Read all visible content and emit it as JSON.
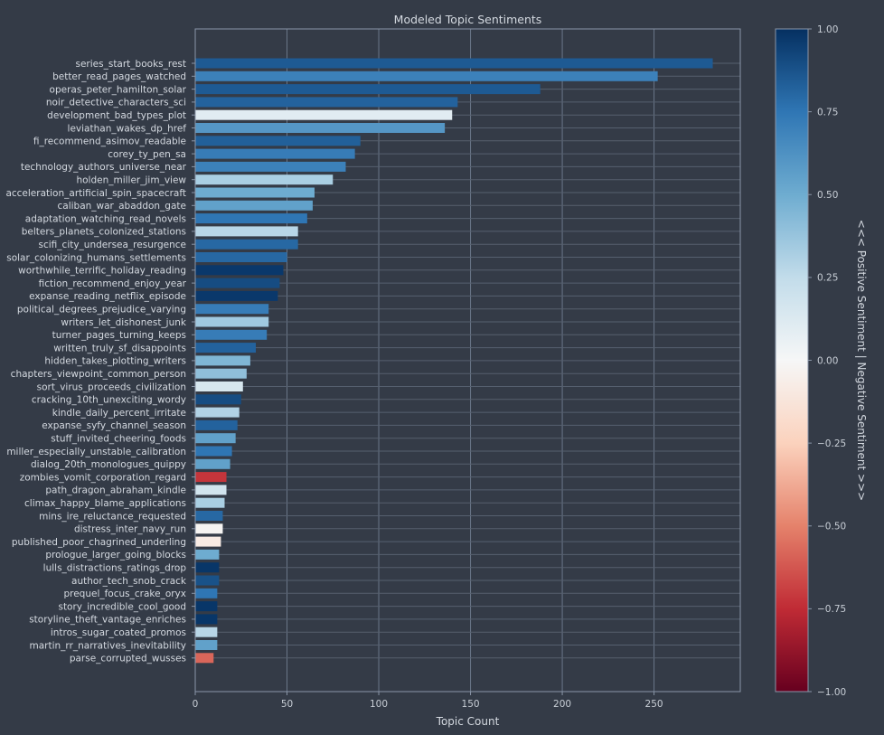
{
  "chart_data": {
    "type": "bar",
    "orientation": "horizontal",
    "title": "Modeled Topic Sentiments",
    "xlabel": "Topic Count",
    "ylabel": "",
    "xlim": [
      0,
      297
    ],
    "xticks": [
      0,
      50,
      100,
      150,
      200,
      250
    ],
    "grid": true,
    "colorbar": {
      "label": "<<< Positive Sentiment | Negative Sentiment >>>",
      "colormap": "RdBu",
      "range": [
        -1.0,
        1.0
      ],
      "ticks": [
        "1.00",
        "0.75",
        "0.50",
        "0.25",
        "0.00",
        "−0.25",
        "−0.50",
        "−0.75",
        "−1.00"
      ],
      "stops": {
        "minus_1_00": "#67001f",
        "minus_0_75": "#c02b35",
        "minus_0_50": "#e5826b",
        "minus_0_25": "#fbd2bd",
        "zero": "#f6f7f7",
        "plus_0_25": "#c2dcea",
        "plus_0_50": "#6eacd0",
        "plus_0_75": "#2f76b4",
        "plus_1_00": "#053061"
      }
    },
    "categories": [
      "series_start_books_rest",
      "better_read_pages_watched",
      "operas_peter_hamilton_solar",
      "noir_detective_characters_sci",
      "development_bad_types_plot",
      "leviathan_wakes_dp_href",
      "fi_recommend_asimov_readable",
      "corey_ty_pen_sa",
      "technology_authors_universe_near",
      "holden_miller_jim_view",
      "acceleration_artificial_spin_spacecraft",
      "caliban_war_abaddon_gate",
      "adaptation_watching_read_novels",
      "belters_planets_colonized_stations",
      "scifi_city_undersea_resurgence",
      "solar_colonizing_humans_settlements",
      "worthwhile_terrific_holiday_reading",
      "fiction_recommend_enjoy_year",
      "expanse_reading_netflix_episode",
      "political_degrees_prejudice_varying",
      "writers_let_dishonest_junk",
      "turner_pages_turning_keeps",
      "written_truly_sf_disappoints",
      "hidden_takes_plotting_writers",
      "chapters_viewpoint_common_person",
      "sort_virus_proceeds_civilization",
      "cracking_10th_unexciting_wordy",
      "kindle_daily_percent_irritate",
      "expanse_syfy_channel_season",
      "stuff_invited_cheering_foods",
      "miller_especially_unstable_calibration",
      "dialog_20th_monologues_quippy",
      "zombies_vomit_corporation_regard",
      "path_dragon_abraham_kindle",
      "climax_happy_blame_applications",
      "mins_ire_reluctance_requested",
      "distress_inter_navy_run",
      "published_poor_chagrined_underling",
      "prologue_larger_going_blocks",
      "lulls_distractions_ratings_drop",
      "author_tech_snob_crack",
      "prequel_focus_crake_oryx",
      "story_incredible_cool_good",
      "storyline_theft_vantage_enriches",
      "intros_sugar_coated_promos",
      "martin_rr_narratives_inevitability",
      "parse_corrupted_wusses"
    ],
    "values": [
      282,
      252,
      188,
      143,
      140,
      136,
      90,
      87,
      82,
      75,
      65,
      64,
      61,
      56,
      56,
      50,
      48,
      46,
      45,
      40,
      40,
      39,
      33,
      30,
      28,
      26,
      25,
      24,
      23,
      22,
      20,
      19,
      17,
      17,
      16,
      15,
      15,
      14,
      13,
      13,
      13,
      12,
      12,
      12,
      12,
      12,
      10
    ],
    "sentiment": [
      0.85,
      0.7,
      0.85,
      0.82,
      0.1,
      0.6,
      0.83,
      0.72,
      0.7,
      0.32,
      0.5,
      0.55,
      0.75,
      0.28,
      0.8,
      0.8,
      0.97,
      0.9,
      0.97,
      0.72,
      0.35,
      0.72,
      0.82,
      0.45,
      0.4,
      0.15,
      0.9,
      0.3,
      0.82,
      0.55,
      0.75,
      0.55,
      -0.72,
      0.18,
      0.32,
      0.8,
      -0.02,
      -0.08,
      0.5,
      0.98,
      0.88,
      0.75,
      0.98,
      0.98,
      0.28,
      0.55,
      -0.58
    ]
  }
}
